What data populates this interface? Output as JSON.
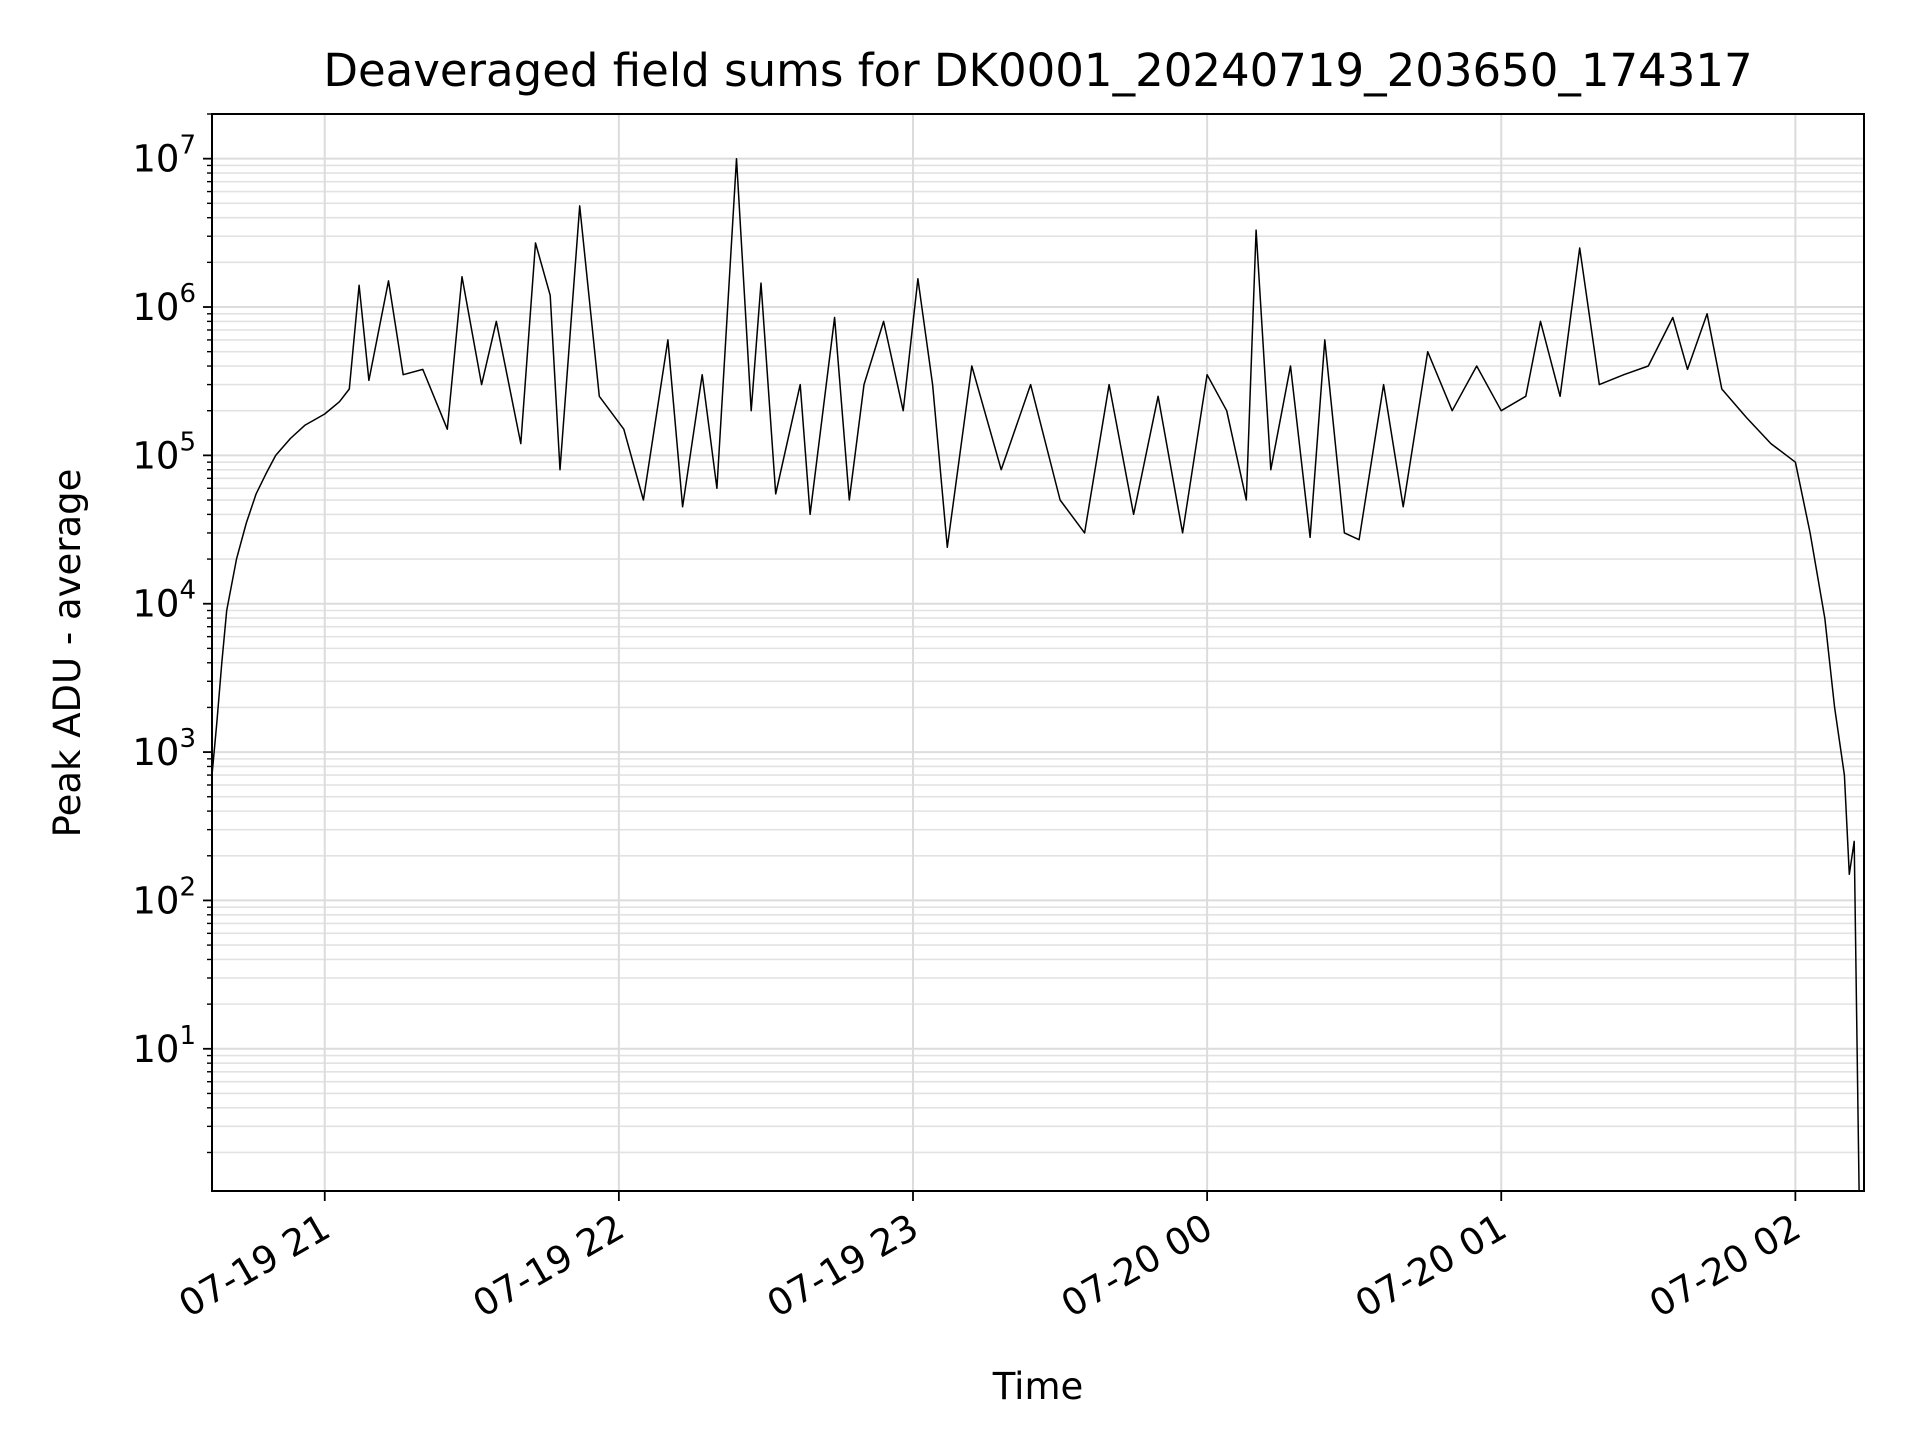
{
  "chart_data": {
    "type": "line",
    "title": "Deaveraged field sums for DK0001_20240719_203650_174317",
    "xlabel": "Time",
    "ylabel": "Peak ADU - average",
    "yscale": "log",
    "xlim": [
      "07-19 20:37",
      "07-20 02:14"
    ],
    "ylim": [
      1.1,
      20000000
    ],
    "grid": true,
    "x_ticks": [
      "07-19 21",
      "07-19 22",
      "07-19 23",
      "07-20 00",
      "07-20 01",
      "07-20 02"
    ],
    "y_ticks": [
      {
        "base": "10",
        "exp": "1",
        "value": 10
      },
      {
        "base": "10",
        "exp": "2",
        "value": 100
      },
      {
        "base": "10",
        "exp": "3",
        "value": 1000
      },
      {
        "base": "10",
        "exp": "4",
        "value": 10000
      },
      {
        "base": "10",
        "exp": "5",
        "value": 100000
      },
      {
        "base": "10",
        "exp": "6",
        "value": 1000000
      },
      {
        "base": "10",
        "exp": "7",
        "value": 10000000
      }
    ],
    "series": [
      {
        "color": "#000000",
        "points": [
          [
            "07-19 20:37",
            700
          ],
          [
            "07-19 20:38",
            1600
          ],
          [
            "07-19 20:39",
            4000
          ],
          [
            "07-19 20:40",
            9000
          ],
          [
            "07-19 20:42",
            20000
          ],
          [
            "07-19 20:44",
            35000
          ],
          [
            "07-19 20:46",
            55000
          ],
          [
            "07-19 20:48",
            75000
          ],
          [
            "07-19 20:50",
            100000
          ],
          [
            "07-19 20:53",
            130000
          ],
          [
            "07-19 20:56",
            160000
          ],
          [
            "07-19 21:00",
            190000
          ],
          [
            "07-19 21:03",
            230000
          ],
          [
            "07-19 21:05",
            280000
          ],
          [
            "07-19 21:07",
            1400000
          ],
          [
            "07-19 21:09",
            320000
          ],
          [
            "07-19 21:13",
            1500000
          ],
          [
            "07-19 21:16",
            350000
          ],
          [
            "07-19 21:20",
            380000
          ],
          [
            "07-19 21:25",
            150000
          ],
          [
            "07-19 21:28",
            1600000
          ],
          [
            "07-19 21:32",
            300000
          ],
          [
            "07-19 21:35",
            800000
          ],
          [
            "07-19 21:40",
            120000
          ],
          [
            "07-19 21:43",
            2700000
          ],
          [
            "07-19 21:46",
            1200000
          ],
          [
            "07-19 21:48",
            80000
          ],
          [
            "07-19 21:52",
            4800000
          ],
          [
            "07-19 21:56",
            250000
          ],
          [
            "07-19 22:01",
            150000
          ],
          [
            "07-19 22:05",
            50000
          ],
          [
            "07-19 22:10",
            600000
          ],
          [
            "07-19 22:13",
            45000
          ],
          [
            "07-19 22:17",
            350000
          ],
          [
            "07-19 22:20",
            60000
          ],
          [
            "07-19 22:24",
            10000000
          ],
          [
            "07-19 22:27",
            200000
          ],
          [
            "07-19 22:29",
            1450000
          ],
          [
            "07-19 22:32",
            55000
          ],
          [
            "07-19 22:37",
            300000
          ],
          [
            "07-19 22:39",
            40000
          ],
          [
            "07-19 22:44",
            850000
          ],
          [
            "07-19 22:47",
            50000
          ],
          [
            "07-19 22:50",
            300000
          ],
          [
            "07-19 22:54",
            800000
          ],
          [
            "07-19 22:58",
            200000
          ],
          [
            "07-19 23:01",
            1550000
          ],
          [
            "07-19 23:04",
            300000
          ],
          [
            "07-19 23:07",
            24000
          ],
          [
            "07-19 23:12",
            400000
          ],
          [
            "07-19 23:18",
            80000
          ],
          [
            "07-19 23:24",
            300000
          ],
          [
            "07-19 23:30",
            50000
          ],
          [
            "07-19 23:35",
            30000
          ],
          [
            "07-19 23:40",
            300000
          ],
          [
            "07-19 23:45",
            40000
          ],
          [
            "07-19 23:50",
            250000
          ],
          [
            "07-19 23:55",
            30000
          ],
          [
            "07-20 00:00",
            350000
          ],
          [
            "07-20 00:04",
            200000
          ],
          [
            "07-20 00:08",
            50000
          ],
          [
            "07-20 00:10",
            3300000
          ],
          [
            "07-20 00:13",
            80000
          ],
          [
            "07-20 00:17",
            400000
          ],
          [
            "07-20 00:21",
            28000
          ],
          [
            "07-20 00:24",
            600000
          ],
          [
            "07-20 00:28",
            30000
          ],
          [
            "07-20 00:31",
            27000
          ],
          [
            "07-20 00:36",
            300000
          ],
          [
            "07-20 00:40",
            45000
          ],
          [
            "07-20 00:45",
            500000
          ],
          [
            "07-20 00:50",
            200000
          ],
          [
            "07-20 00:55",
            400000
          ],
          [
            "07-20 01:00",
            200000
          ],
          [
            "07-20 01:05",
            250000
          ],
          [
            "07-20 01:08",
            800000
          ],
          [
            "07-20 01:12",
            250000
          ],
          [
            "07-20 01:16",
            2500000
          ],
          [
            "07-20 01:20",
            300000
          ],
          [
            "07-20 01:25",
            350000
          ],
          [
            "07-20 01:30",
            400000
          ],
          [
            "07-20 01:35",
            850000
          ],
          [
            "07-20 01:38",
            380000
          ],
          [
            "07-20 01:42",
            900000
          ],
          [
            "07-20 01:45",
            280000
          ],
          [
            "07-20 01:50",
            180000
          ],
          [
            "07-20 01:55",
            120000
          ],
          [
            "07-20 02:00",
            90000
          ],
          [
            "07-20 02:03",
            30000
          ],
          [
            "07-20 02:06",
            8000
          ],
          [
            "07-20 02:08",
            2000
          ],
          [
            "07-20 02:10",
            700
          ],
          [
            "07-20 02:11",
            150
          ],
          [
            "07-20 02:12",
            250
          ],
          [
            "07-20 02:13",
            1.1
          ]
        ]
      }
    ]
  }
}
